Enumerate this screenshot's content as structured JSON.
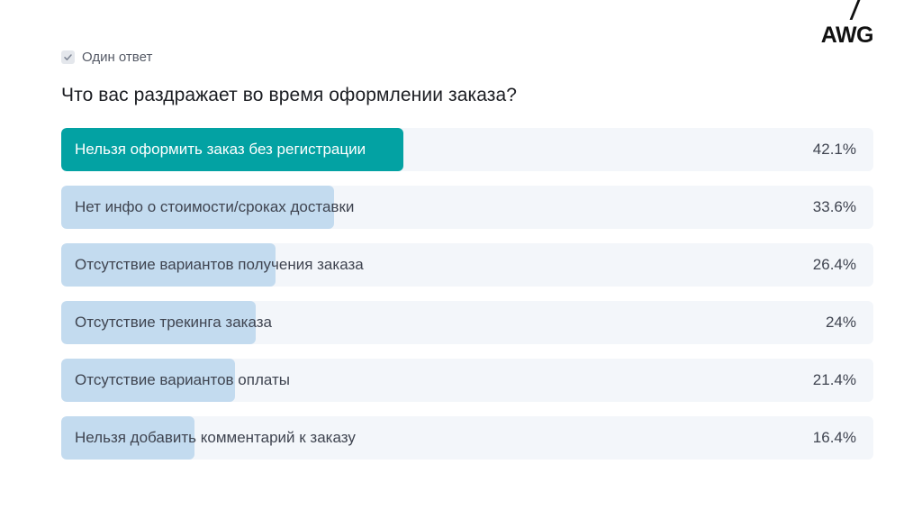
{
  "logo": {
    "text": "AWG"
  },
  "answer_type": {
    "label": "Один ответ",
    "icon": "checkmark-icon"
  },
  "question": "Что вас раздражает во время оформлении заказа?",
  "colors": {
    "highlight_bar": "#03a2a3",
    "bar": "#c3dbef",
    "track": "#f3f6fa"
  },
  "chart_data": {
    "type": "bar",
    "orientation": "horizontal",
    "title": "Что вас раздражает во время оформлении заказа?",
    "xlim": [
      0,
      100
    ],
    "unit": "%",
    "highlighted_index": 0,
    "categories": [
      "Нельзя оформить заказ без регистрации",
      "Нет инфо о стоимости/сроках доставки",
      "Отсутствие вариантов получения заказа",
      "Отсутствие трекинга заказа",
      "Отсутствие вариантов оплаты",
      "Нельзя добавить комментарий к заказу"
    ],
    "values": [
      42.1,
      33.6,
      26.4,
      24,
      21.4,
      16.4
    ],
    "value_labels": [
      "42.1%",
      "33.6%",
      "26.4%",
      "24%",
      "21.4%",
      "16.4%"
    ]
  }
}
